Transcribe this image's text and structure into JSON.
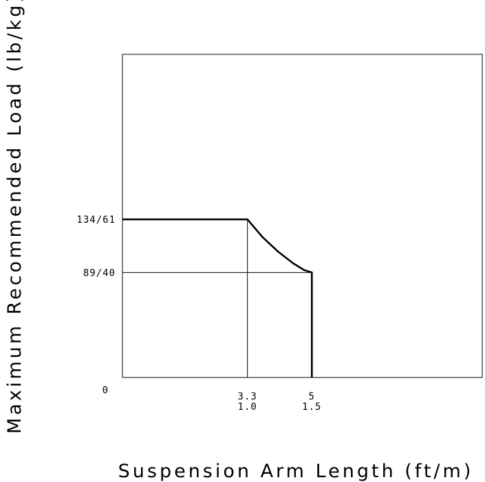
{
  "chart_data": {
    "type": "line",
    "title": "",
    "xlabel": "Suspension Arm Length (ft/m)",
    "ylabel": "Maximum Recommended Load (lb/kg)",
    "x_ticks": [
      {
        "value": 3.3,
        "line1": "3.3",
        "line2": "1.0"
      },
      {
        "value": 5,
        "line1": "5",
        "line2": "1.5"
      }
    ],
    "y_ticks": [
      {
        "value": 0,
        "label": "0"
      },
      {
        "value": 89,
        "label": "89/40"
      },
      {
        "value": 134,
        "label": "134/61"
      }
    ],
    "xlim": [
      0,
      9.5
    ],
    "ylim": [
      0,
      274
    ],
    "grid": false,
    "series": [
      {
        "x": [
          0,
          3.3,
          3.7,
          4.1,
          4.5,
          4.8,
          5,
          5
        ],
        "y": [
          134,
          134,
          119,
          107,
          97,
          91,
          89,
          0
        ]
      }
    ],
    "reference_lines": [
      {
        "orientation": "vertical",
        "x": 3.3,
        "y_from": 0,
        "y_to": 134
      },
      {
        "orientation": "horizontal",
        "y": 89,
        "x_from": 0,
        "x_to": 5
      }
    ]
  }
}
